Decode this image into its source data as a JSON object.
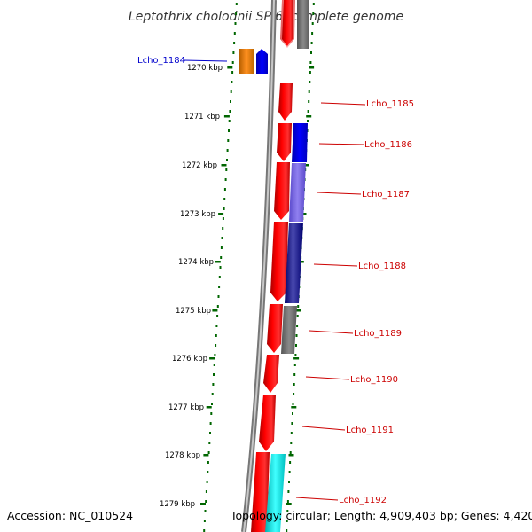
{
  "title": "Leptothrix cholodnii SP-6, complete genome",
  "footer": {
    "accession": "Accession: NC_010524",
    "topology": "Topology: circular; Length: 4,909,403 bp; Genes: 4,420"
  },
  "ticks": [
    "1270 kbp",
    "1271 kbp",
    "1272 kbp",
    "1273 kbp",
    "1274 kbp",
    "1275 kbp",
    "1276 kbp",
    "1277 kbp",
    "1278 kbp",
    "1279 kbp"
  ],
  "colors": {
    "forward_gene": "#ff0000",
    "reverse_label": "#0000cc",
    "forward_label": "#cc0000",
    "backbone": "#888888",
    "tick_marks": "#006600"
  },
  "labels": [
    {
      "text": "Lcho_1184",
      "strand": "reverse"
    },
    {
      "text": "Lcho_1185",
      "strand": "forward"
    },
    {
      "text": "Lcho_1186",
      "strand": "forward"
    },
    {
      "text": "Lcho_1187",
      "strand": "forward"
    },
    {
      "text": "Lcho_1188",
      "strand": "forward"
    },
    {
      "text": "Lcho_1189",
      "strand": "forward"
    },
    {
      "text": "Lcho_1190",
      "strand": "forward"
    },
    {
      "text": "Lcho_1191",
      "strand": "forward"
    },
    {
      "text": "Lcho_1192",
      "strand": "forward"
    }
  ]
}
